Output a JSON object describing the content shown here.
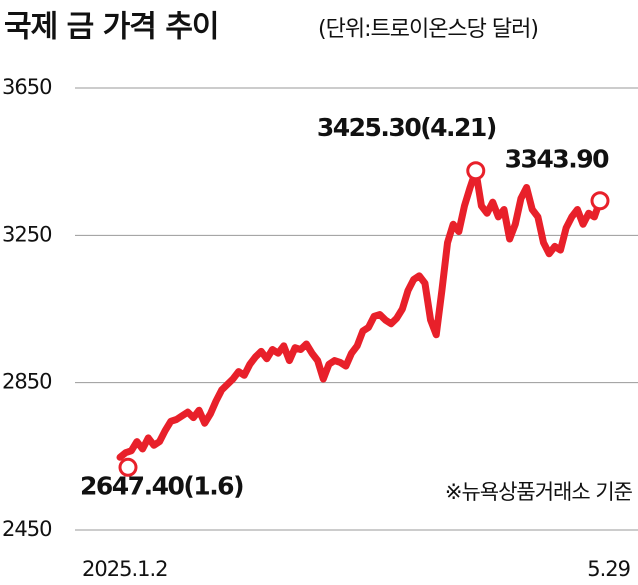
{
  "chart_data": {
    "type": "line",
    "title": "국제 금 가격 추이",
    "subtitle": "(단위:트로이온스당 달러)",
    "note": "※뉴욕상품거래소 기준",
    "annotations": [
      "2647.40(1.6)",
      "3425.30(4.21)",
      "3343.90"
    ],
    "categories": [
      "2025.1.2",
      null,
      null,
      null,
      null,
      null,
      null,
      null,
      null,
      null,
      null,
      null,
      null,
      null,
      null,
      null,
      null,
      null,
      null,
      null,
      null,
      null,
      null,
      null,
      null,
      null,
      null,
      null,
      null,
      null,
      null,
      null,
      null,
      null,
      null,
      null,
      null,
      null,
      null,
      null,
      null,
      null,
      null,
      null,
      null,
      null,
      null,
      null,
      null,
      null,
      null,
      null,
      null,
      null,
      null,
      null,
      null,
      null,
      null,
      null,
      null,
      null,
      null,
      null,
      null,
      null,
      null,
      null,
      null,
      null,
      null,
      null,
      null,
      null,
      null,
      null,
      null,
      null,
      null,
      null,
      null,
      null,
      null,
      null,
      null,
      "5.29"
    ],
    "series": [
      {
        "name": "국제 금 가격",
        "color": "#e8202a",
        "values": [
          2647.4,
          2660,
          2665,
          2690,
          2670,
          2700,
          2680,
          2690,
          2720,
          2745,
          2750,
          2760,
          2770,
          2755,
          2775,
          2740,
          2765,
          2800,
          2830,
          2845,
          2860,
          2880,
          2870,
          2900,
          2920,
          2935,
          2915,
          2940,
          2930,
          2950,
          2910,
          2945,
          2940,
          2955,
          2930,
          2910,
          2860,
          2900,
          2910,
          2905,
          2895,
          2930,
          2950,
          2990,
          3000,
          3030,
          3035,
          3020,
          3010,
          3025,
          3050,
          3100,
          3130,
          3140,
          3120,
          3020,
          2980,
          3100,
          3230,
          3280,
          3260,
          3330,
          3380,
          3425.3,
          3330,
          3310,
          3340,
          3300,
          3320,
          3240,
          3280,
          3350,
          3380,
          3320,
          3300,
          3230,
          3200,
          3220,
          3210,
          3270,
          3300,
          3320,
          3280,
          3310,
          3300,
          3343.9
        ]
      }
    ],
    "ylim": [
      2450,
      3650
    ],
    "yticks": [
      2450,
      2850,
      3250,
      3650
    ],
    "grid": true
  }
}
